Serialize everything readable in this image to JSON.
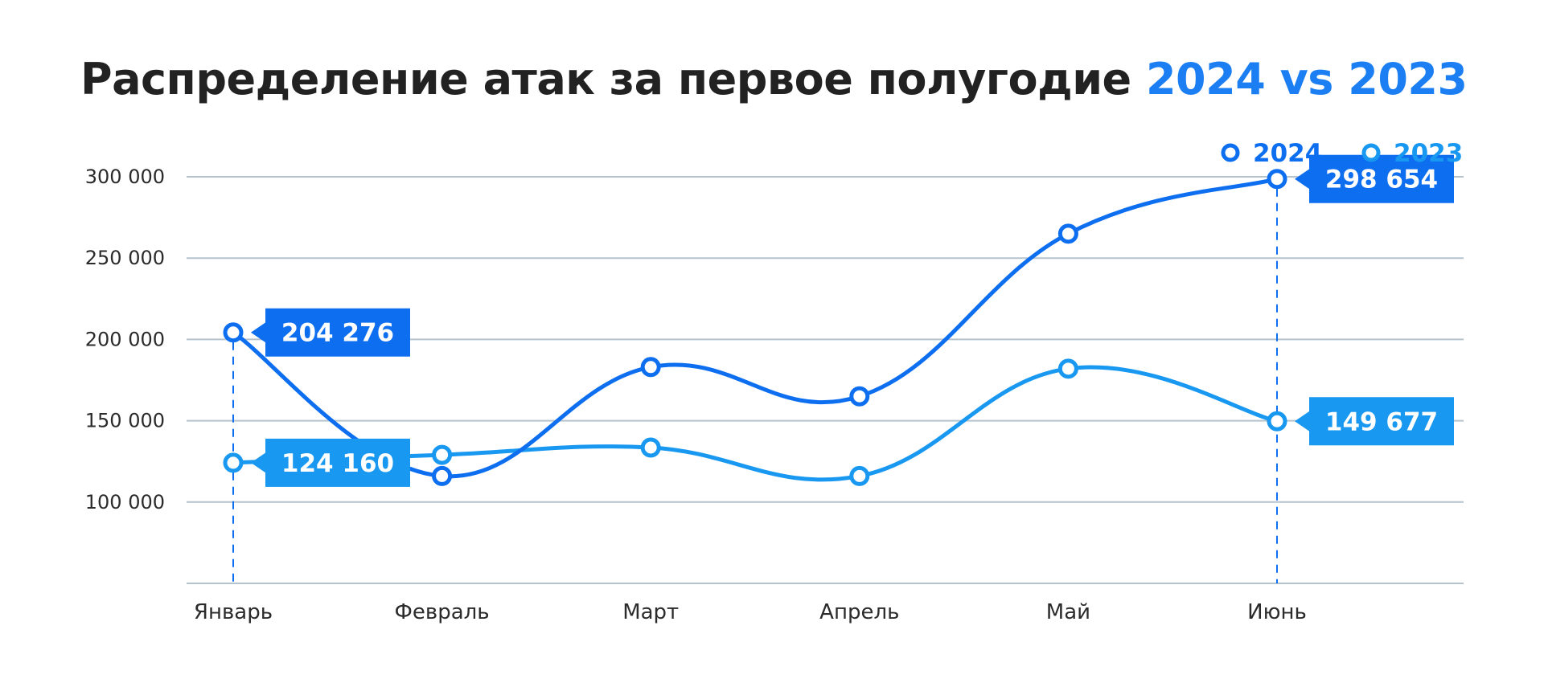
{
  "title": {
    "main": "Распределение атак за первое полугодие",
    "year_a": "2024",
    "vs": "vs",
    "year_b": "2023"
  },
  "colors": {
    "text": "#222222",
    "accent": "#1b7ff3",
    "series_2024": "#0d6ff0",
    "series_2023": "#1898f0",
    "grid": "#b5c3cf",
    "axis_label": "#2b2b2b"
  },
  "chart_data": {
    "type": "line",
    "categories": [
      "Январь",
      "Февраль",
      "Март",
      "Апрель",
      "Май",
      "Июнь"
    ],
    "series": [
      {
        "name": "2024",
        "values": [
          204276,
          116000,
          183000,
          165000,
          265000,
          298654
        ]
      },
      {
        "name": "2023",
        "values": [
          124160,
          129000,
          133500,
          116000,
          182000,
          149677
        ]
      }
    ],
    "y_ticks": [
      100000,
      150000,
      200000,
      250000,
      300000
    ],
    "y_tick_labels": [
      "100 000",
      "150 000",
      "200 000",
      "250 000",
      "300 000"
    ],
    "ylim": [
      50000,
      300000
    ],
    "grid": true,
    "legend_position": "top-right",
    "annotations": [
      {
        "series": "2024",
        "category": "Январь",
        "text": "204 276"
      },
      {
        "series": "2023",
        "category": "Январь",
        "text": "124 160"
      },
      {
        "series": "2024",
        "category": "Июнь",
        "text": "298 654"
      },
      {
        "series": "2023",
        "category": "Июнь",
        "text": "149 677"
      }
    ]
  }
}
